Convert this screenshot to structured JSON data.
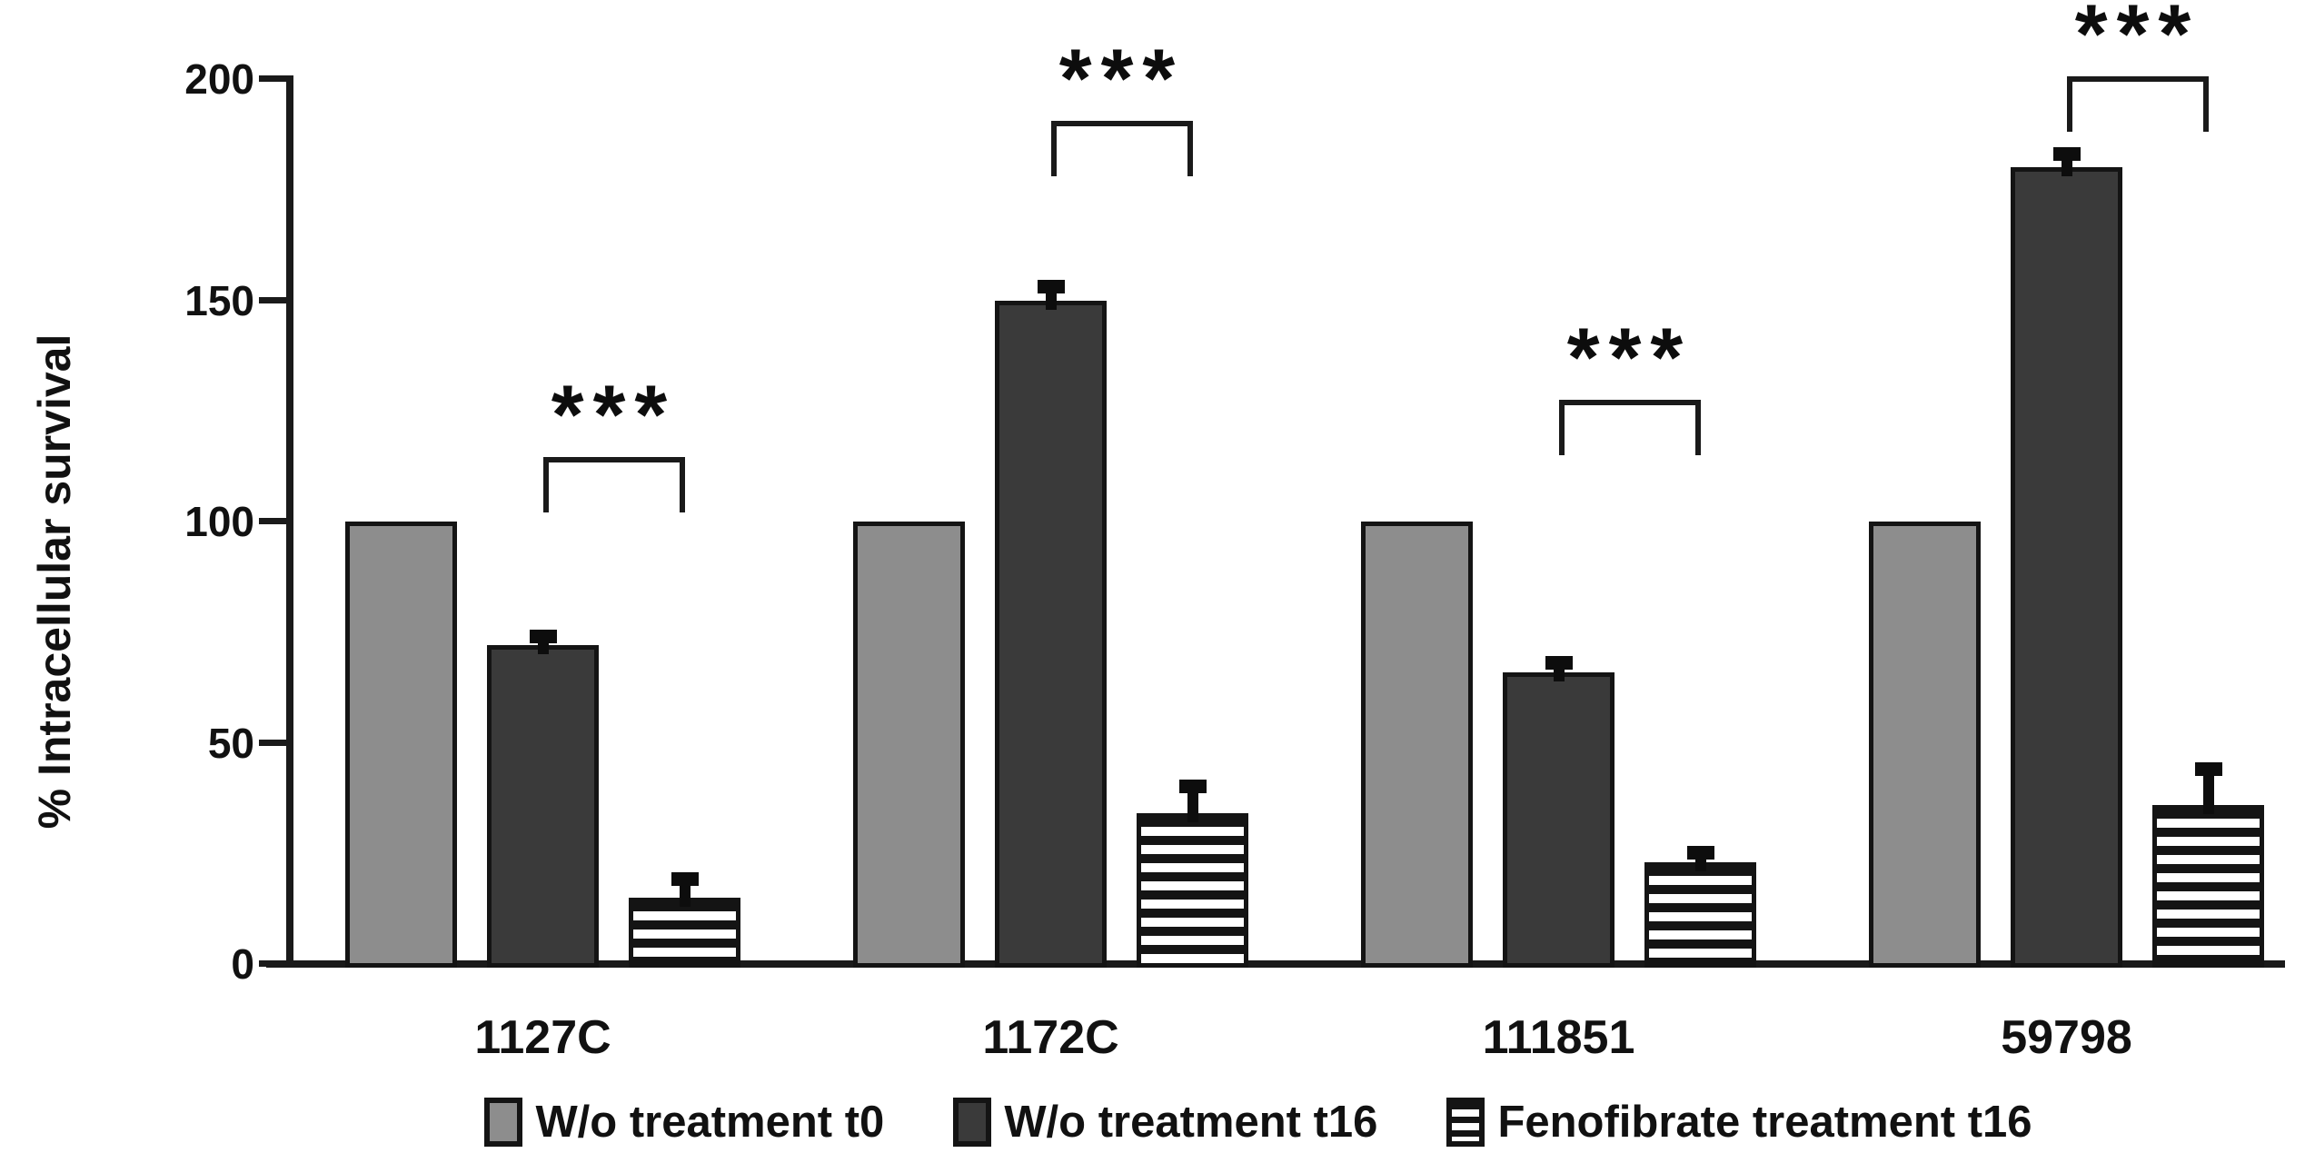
{
  "figure": {
    "background": "#ffffff",
    "axis_color": "#1a1a1a",
    "text_color": "#111111"
  },
  "chart_data": {
    "type": "bar",
    "title": "",
    "xlabel": "",
    "ylabel": "% Intracellular survival",
    "ylim": [
      0,
      200
    ],
    "yticks": [
      0,
      50,
      100,
      150,
      200
    ],
    "grid": false,
    "legend_position": "bottom",
    "categories": [
      "1127C",
      "1172C",
      "111851",
      "59798"
    ],
    "series": [
      {
        "name": "W/o treatment t0",
        "pattern": "solid",
        "color": "#8d8d8d",
        "values": [
          100,
          100,
          100,
          100
        ],
        "errors": [
          0,
          0,
          0,
          0
        ]
      },
      {
        "name": "W/o treatment t16",
        "pattern": "solid",
        "color": "#3a3a3a",
        "values": [
          72,
          150,
          66,
          180
        ],
        "errors": [
          2,
          3,
          2,
          3
        ]
      },
      {
        "name": "Fenofibrate treatment t16",
        "pattern": "horizontal-stripes",
        "color": "#ffffff",
        "stripe_color": "#141414",
        "values": [
          15,
          34,
          23,
          36
        ],
        "errors": [
          4,
          6,
          2,
          8
        ]
      }
    ],
    "significance": [
      {
        "category": "1127C",
        "between": [
          "W/o treatment t16",
          "Fenofibrate treatment t16"
        ],
        "label": "***",
        "line_value": 114
      },
      {
        "category": "1172C",
        "between": [
          "W/o treatment t16",
          "Fenofibrate treatment t16"
        ],
        "label": "***",
        "line_value": 190
      },
      {
        "category": "111851",
        "between": [
          "W/o treatment t16",
          "Fenofibrate treatment t16"
        ],
        "label": "***",
        "line_value": 127
      },
      {
        "category": "59798",
        "between": [
          "W/o treatment t16",
          "Fenofibrate treatment t16"
        ],
        "label": "***",
        "line_value": 200
      }
    ]
  }
}
